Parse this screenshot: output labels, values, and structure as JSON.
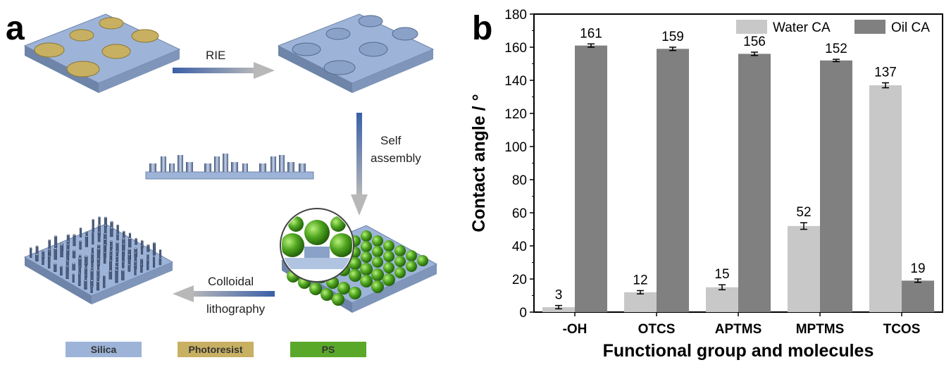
{
  "panel_a": {
    "letter": "a",
    "steps": {
      "rie": "RIE",
      "self_assembly_1": "Self",
      "self_assembly_2": "assembly",
      "colloidal_1": "Colloidal",
      "colloidal_2": "lithography"
    },
    "legend": [
      {
        "label": "Silica",
        "color": "#9db4d8"
      },
      {
        "label": "Photoresist",
        "color": "#c8b063"
      },
      {
        "label": "PS",
        "color": "#5aa82a"
      }
    ]
  },
  "chart_data": {
    "type": "bar",
    "panel_letter": "b",
    "categories": [
      "-OH",
      "OTCS",
      "APTMS",
      "MPTMS",
      "TCOS"
    ],
    "series": [
      {
        "name": "Water CA",
        "values": [
          3,
          12,
          15,
          52,
          137
        ],
        "errors": [
          1,
          1,
          1.5,
          2,
          1.5
        ],
        "color": "#c8c8c8"
      },
      {
        "name": "Oil CA",
        "values": [
          161,
          159,
          156,
          152,
          19
        ],
        "errors": [
          1,
          1,
          1,
          0.7,
          1
        ],
        "color": "#808080"
      }
    ],
    "data_labels": [
      {
        "water": "3",
        "oil": "161"
      },
      {
        "water": "12",
        "oil": "159"
      },
      {
        "water": "15",
        "oil": "156"
      },
      {
        "water": "52",
        "oil": "152"
      },
      {
        "water": "137",
        "oil": "19"
      }
    ],
    "ylim": [
      0,
      180
    ],
    "yticks": [
      0,
      20,
      40,
      60,
      80,
      100,
      120,
      140,
      160,
      180
    ],
    "xlabel": "Functional group and molecules",
    "ylabel": "Contact angle / °",
    "legend_position": "top-right",
    "grid": false
  }
}
